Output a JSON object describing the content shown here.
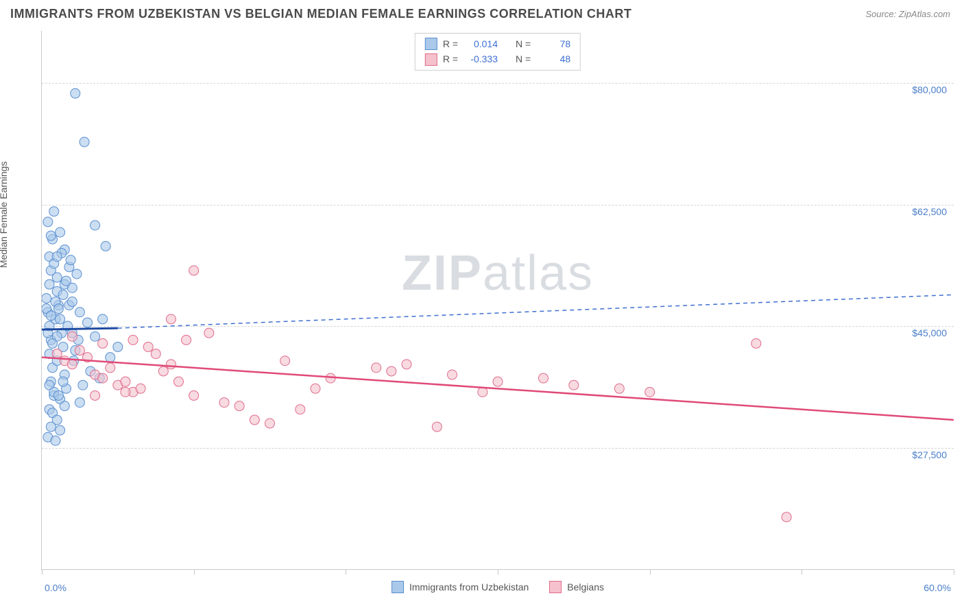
{
  "header": {
    "title": "IMMIGRANTS FROM UZBEKISTAN VS BELGIAN MEDIAN FEMALE EARNINGS CORRELATION CHART",
    "source": "Source: ZipAtlas.com"
  },
  "chart": {
    "type": "scatter",
    "ylabel": "Median Female Earnings",
    "watermark_a": "ZIP",
    "watermark_b": "atlas",
    "background_color": "#ffffff",
    "grid_color": "#d5d5d5",
    "axis_color": "#c8c8c8",
    "label_color": "#4a7ec9",
    "xlim": [
      0,
      60
    ],
    "ylim": [
      10000,
      87500
    ],
    "x_min_label": "0.0%",
    "x_max_label": "60.0%",
    "yticks": [
      27500,
      45000,
      62500,
      80000
    ],
    "ytick_labels": [
      "$27,500",
      "$45,000",
      "$62,500",
      "$80,000"
    ],
    "xticks": [
      0,
      10,
      20,
      30,
      40,
      50,
      60
    ],
    "series": [
      {
        "name": "Immigrants from Uzbekistan",
        "color_fill": "#a9c8ea",
        "color_stroke": "#5b8fd0",
        "marker_radius": 7,
        "trend": {
          "x1": 0,
          "y1": 44500,
          "x2": 5,
          "y2": 44700,
          "x2_dash": 60,
          "y2_dash": 49500,
          "solid_color": "#1f4aa0",
          "dash_color": "#3d6fd1"
        },
        "R": "0.014",
        "N": "78",
        "points": [
          [
            0.3,
            49000
          ],
          [
            0.4,
            47000
          ],
          [
            0.5,
            45000
          ],
          [
            0.6,
            43000
          ],
          [
            0.5,
            41000
          ],
          [
            0.7,
            39000
          ],
          [
            0.6,
            37000
          ],
          [
            0.8,
            35000
          ],
          [
            0.4,
            44000
          ],
          [
            0.9,
            46000
          ],
          [
            1.0,
            50000
          ],
          [
            1.1,
            48000
          ],
          [
            1.2,
            46000
          ],
          [
            1.3,
            44000
          ],
          [
            1.4,
            42000
          ],
          [
            1.0,
            40000
          ],
          [
            1.5,
            38000
          ],
          [
            1.6,
            36000
          ],
          [
            1.2,
            34500
          ],
          [
            1.7,
            45000
          ],
          [
            0.5,
            55000
          ],
          [
            0.7,
            57500
          ],
          [
            0.6,
            53000
          ],
          [
            1.0,
            52000
          ],
          [
            1.5,
            51000
          ],
          [
            2.0,
            50500
          ],
          [
            2.3,
            52500
          ],
          [
            0.4,
            60000
          ],
          [
            0.8,
            61500
          ],
          [
            1.2,
            58500
          ],
          [
            0.6,
            58000
          ],
          [
            1.5,
            56000
          ],
          [
            2.5,
            47000
          ],
          [
            3.0,
            45500
          ],
          [
            3.5,
            43500
          ],
          [
            4.0,
            46000
          ],
          [
            5.0,
            42000
          ],
          [
            0.5,
            33000
          ],
          [
            0.7,
            32500
          ],
          [
            1.0,
            31500
          ],
          [
            0.6,
            30500
          ],
          [
            1.2,
            30000
          ],
          [
            1.5,
            33500
          ],
          [
            0.4,
            29000
          ],
          [
            0.9,
            28500
          ],
          [
            2.5,
            34000
          ],
          [
            0.5,
            51000
          ],
          [
            0.8,
            54000
          ],
          [
            1.3,
            55500
          ],
          [
            1.8,
            53500
          ],
          [
            2.0,
            44000
          ],
          [
            2.2,
            41500
          ],
          [
            4.5,
            40500
          ],
          [
            3.2,
            38500
          ],
          [
            3.8,
            37500
          ],
          [
            1.0,
            43500
          ],
          [
            0.7,
            42500
          ],
          [
            0.9,
            48500
          ],
          [
            1.1,
            47500
          ],
          [
            1.4,
            49500
          ],
          [
            1.6,
            51500
          ],
          [
            1.9,
            54500
          ],
          [
            2.1,
            40000
          ],
          [
            2.4,
            43000
          ],
          [
            2.7,
            36500
          ],
          [
            0.5,
            36500
          ],
          [
            0.8,
            35500
          ],
          [
            1.1,
            35000
          ],
          [
            1.4,
            37000
          ],
          [
            1.8,
            48000
          ],
          [
            0.3,
            47500
          ],
          [
            0.6,
            46500
          ],
          [
            1.0,
            55000
          ],
          [
            2.0,
            48500
          ],
          [
            3.5,
            59500
          ],
          [
            4.2,
            56500
          ],
          [
            2.2,
            78500
          ],
          [
            2.8,
            71500
          ]
        ]
      },
      {
        "name": "Belgians",
        "color_fill": "#f4c1cd",
        "color_stroke": "#e06b8b",
        "marker_radius": 7,
        "trend": {
          "x1": 0,
          "y1": 40500,
          "x2": 60,
          "y2": 31500,
          "solid_color": "#e04a78"
        },
        "R": "-0.333",
        "N": "48",
        "points": [
          [
            1.0,
            41000
          ],
          [
            1.5,
            40000
          ],
          [
            2.0,
            39500
          ],
          [
            2.5,
            41500
          ],
          [
            3.0,
            40500
          ],
          [
            3.5,
            38000
          ],
          [
            4.0,
            37500
          ],
          [
            4.5,
            39000
          ],
          [
            5.0,
            36500
          ],
          [
            5.5,
            37000
          ],
          [
            6.0,
            35500
          ],
          [
            6.5,
            36000
          ],
          [
            7.0,
            42000
          ],
          [
            7.5,
            41000
          ],
          [
            8.0,
            38500
          ],
          [
            8.5,
            39500
          ],
          [
            9.0,
            37000
          ],
          [
            9.5,
            43000
          ],
          [
            10.0,
            35000
          ],
          [
            11.0,
            44000
          ],
          [
            12.0,
            34000
          ],
          [
            13.0,
            33500
          ],
          [
            14.0,
            31500
          ],
          [
            15.0,
            31000
          ],
          [
            16.0,
            40000
          ],
          [
            17.0,
            33000
          ],
          [
            18.0,
            36000
          ],
          [
            19.0,
            37500
          ],
          [
            22.0,
            39000
          ],
          [
            23.0,
            38500
          ],
          [
            24.0,
            39500
          ],
          [
            26.0,
            30500
          ],
          [
            27.0,
            38000
          ],
          [
            29.0,
            35500
          ],
          [
            30.0,
            37000
          ],
          [
            33.0,
            37500
          ],
          [
            35.0,
            36500
          ],
          [
            38.0,
            36000
          ],
          [
            40.0,
            35500
          ],
          [
            47.0,
            42500
          ],
          [
            49.0,
            17500
          ],
          [
            4.0,
            42500
          ],
          [
            6.0,
            43000
          ],
          [
            10.0,
            53000
          ],
          [
            8.5,
            46000
          ],
          [
            3.5,
            35000
          ],
          [
            5.5,
            35500
          ],
          [
            2.0,
            43500
          ]
        ]
      }
    ]
  },
  "legend_top": {
    "r_label": "R =",
    "n_label": "N ="
  }
}
